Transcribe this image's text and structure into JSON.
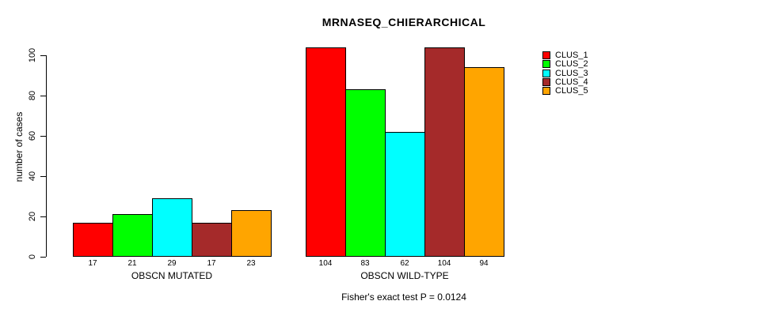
{
  "chart_data": {
    "type": "bar",
    "title": "MRNASEQ_CHIERARCHICAL",
    "ylabel": "number of cases",
    "xlabel": "",
    "categories": [
      "OBSCN MUTATED",
      "OBSCN WILD-TYPE"
    ],
    "series": [
      {
        "name": "CLUS_1",
        "color": "#FF0000",
        "values": [
          17,
          104
        ]
      },
      {
        "name": "CLUS_2",
        "color": "#00FF00",
        "values": [
          21,
          83
        ]
      },
      {
        "name": "CLUS_3",
        "color": "#00FFFF",
        "values": [
          29,
          62
        ]
      },
      {
        "name": "CLUS_4",
        "color": "#A52A2A",
        "values": [
          17,
          104
        ]
      },
      {
        "name": "CLUS_5",
        "color": "#FFA500",
        "values": [
          23,
          94
        ]
      }
    ],
    "yticks": [
      0,
      20,
      40,
      60,
      80,
      100
    ],
    "ylim": [
      0,
      100
    ],
    "grid": false,
    "legend_position": "top-right",
    "bar_border_color": "#000000",
    "annotation": "Fisher's exact test P = 0.0124"
  }
}
